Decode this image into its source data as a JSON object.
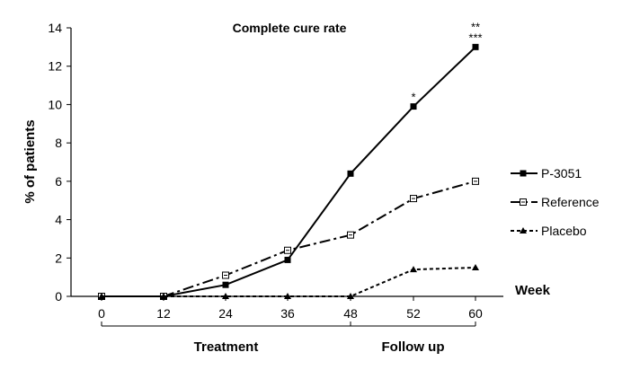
{
  "chart_data": {
    "type": "line",
    "title": "Complete cure rate",
    "xlabel": "Week",
    "ylabel": "% of patients",
    "x": [
      "0",
      "12",
      "24",
      "36",
      "48",
      "52",
      "60"
    ],
    "ylim": [
      0,
      14
    ],
    "yticks": [
      "0",
      "2",
      "4",
      "6",
      "8",
      "10",
      "12",
      "14"
    ],
    "legend_position": "right",
    "series": [
      {
        "name": "P-3051",
        "values": [
          0,
          0,
          0.6,
          1.9,
          6.4,
          9.9,
          13.0
        ],
        "line": "solid",
        "marker": "filled-square"
      },
      {
        "name": "Reference",
        "values": [
          0,
          0,
          1.1,
          2.4,
          3.2,
          5.1,
          6.0
        ],
        "line": "dash-dot",
        "marker": "hollow-square"
      },
      {
        "name": "Placebo",
        "values": [
          0,
          0,
          0,
          0,
          0,
          1.4,
          1.5
        ],
        "line": "dotted",
        "marker": "triangle"
      }
    ],
    "annotations": [
      {
        "text": "*",
        "x_index": 5,
        "y": 9.9,
        "line": 1
      },
      {
        "text": "**",
        "x_index": 6,
        "y": 13.0,
        "line": 2
      },
      {
        "text": "***",
        "x_index": 6,
        "y": 13.0,
        "line": 1
      }
    ],
    "periods": [
      {
        "label": "Treatment",
        "from_index": 0,
        "to_index": 4
      },
      {
        "label": "Follow up",
        "from_index": 4,
        "to_index": 6
      }
    ]
  }
}
